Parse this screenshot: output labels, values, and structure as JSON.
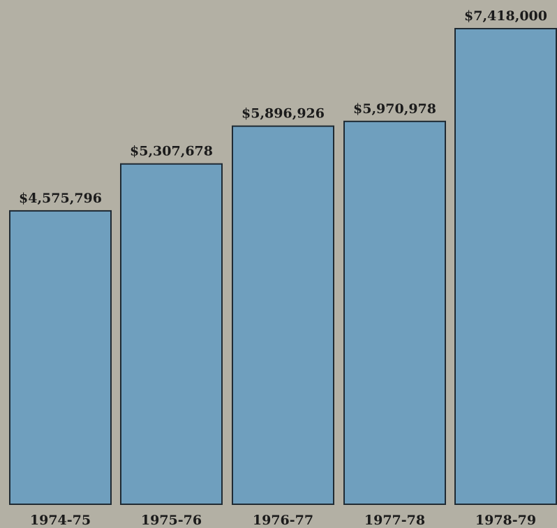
{
  "chart_data": {
    "type": "bar",
    "title": "",
    "xlabel": "",
    "ylabel": "",
    "categories": [
      "1974-75",
      "1975-76",
      "1976-77",
      "1977-78",
      "1978-79"
    ],
    "values": [
      4575796,
      5307678,
      5896926,
      5970978,
      7418000
    ],
    "value_labels": [
      "$4,575,796",
      "$5,307,678",
      "$5,896,926",
      "$5,970,978",
      "$7,418,000"
    ],
    "ylim": [
      0,
      7418000
    ],
    "grid": false,
    "legend": "none",
    "colors": {
      "bar": "#6f9fbe",
      "bar_outline": "#1f2a33",
      "background": "#b3b0a4",
      "text": "#1b1b1b"
    }
  }
}
